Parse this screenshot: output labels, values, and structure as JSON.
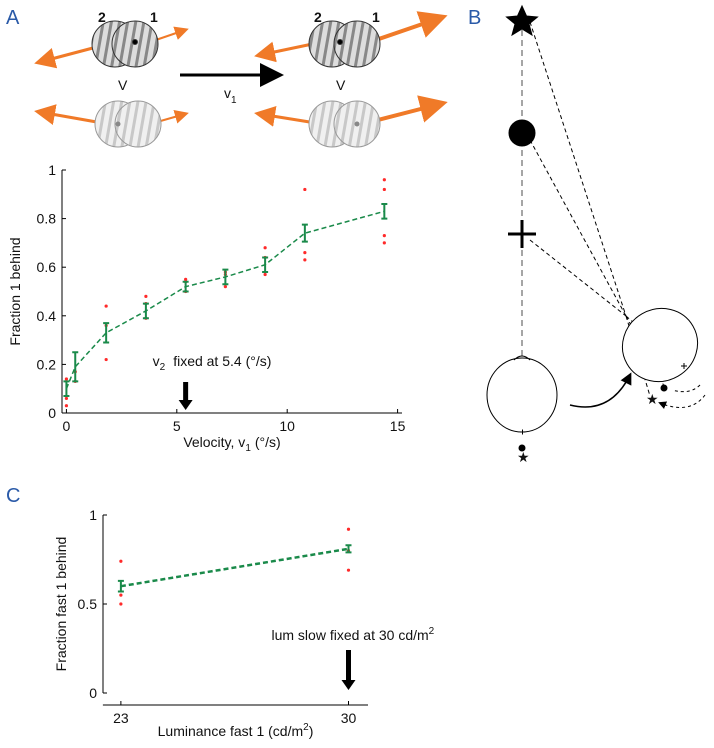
{
  "panels": {
    "a": "A",
    "b": "B",
    "c": "C"
  },
  "diagram": {
    "label_2_left": "2",
    "label_1_left": "1",
    "label_2_right": "2",
    "label_1_right": "1",
    "v_left": "V",
    "v_right": "V",
    "arrow_label": "v",
    "arrow_label_sub": "1"
  },
  "chart_data": [
    {
      "type": "line",
      "ylabel": "Fraction 1 behind",
      "xlabel": {
        "text": "Velocity, v",
        "sub": "1",
        "rest": "(°/s)"
      },
      "annotation": {
        "text": "v",
        "sub": "2",
        "rest": "fixed at 5.4 (°/s)",
        "x": 5.4
      },
      "xlim": [
        -0.2,
        15.2
      ],
      "xticks": [
        0,
        5,
        10,
        15
      ],
      "ylim": [
        0,
        1
      ],
      "yticks": [
        0,
        0.2,
        0.4,
        0.6,
        0.8,
        1
      ],
      "series": [
        {
          "color": "#ff2a2a",
          "style": "points",
          "x": [
            0,
            0,
            0,
            0.4,
            0.4,
            1.8,
            1.8,
            1.8,
            3.6,
            3.6,
            3.6,
            5.4,
            5.4,
            5.4,
            7.2,
            7.2,
            7.2,
            9,
            9,
            9,
            10.8,
            10.8,
            10.8,
            14.4,
            14.4,
            14.4,
            14.4
          ],
          "values": [
            0.03,
            0.06,
            0.14,
            0.13,
            0.17,
            0.22,
            0.36,
            0.44,
            0.39,
            0.45,
            0.48,
            0.5,
            0.54,
            0.55,
            0.52,
            0.57,
            0.58,
            0.57,
            0.64,
            0.68,
            0.63,
            0.66,
            0.92,
            0.7,
            0.73,
            0.92,
            0.96
          ]
        },
        {
          "color": "#1a8a4a",
          "style": "errorline",
          "x": [
            0,
            0.4,
            1.8,
            3.6,
            5.4,
            7.2,
            9,
            10.8,
            14.4
          ],
          "values": [
            0.1,
            0.19,
            0.33,
            0.42,
            0.52,
            0.56,
            0.61,
            0.74,
            0.83
          ],
          "errors": [
            0.03,
            0.06,
            0.04,
            0.03,
            0.02,
            0.03,
            0.03,
            0.035,
            0.03
          ]
        }
      ]
    },
    {
      "type": "line",
      "ylabel": "Fraction fast 1 behind",
      "xlabel": {
        "text": "Luminance fast 1 (cd/m",
        "sup": "2",
        "rest": ")"
      },
      "annotation": {
        "text": "lum slow fixed at 30 cd/m",
        "sup": "2",
        "x": 30
      },
      "xlim": [
        22.45,
        30.6
      ],
      "xticks": [
        23,
        30
      ],
      "ylim": [
        0,
        1
      ],
      "yticks": [
        0,
        0.5,
        1
      ],
      "series": [
        {
          "color": "#ff2a2a",
          "style": "points",
          "x": [
            23,
            23,
            23,
            30,
            30,
            30
          ],
          "values": [
            0.5,
            0.55,
            0.74,
            0.69,
            0.8,
            0.92
          ]
        },
        {
          "color": "#1a8a4a",
          "style": "errorline",
          "x": [
            23,
            30
          ],
          "values": [
            0.6,
            0.81
          ],
          "errors": [
            0.03,
            0.02
          ]
        }
      ]
    }
  ]
}
